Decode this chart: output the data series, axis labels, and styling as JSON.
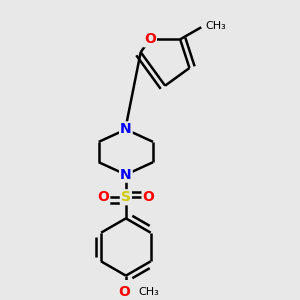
{
  "bg_color": "#e8e8e8",
  "bond_color": "#000000",
  "bond_width": 1.8,
  "atom_colors": {
    "N": "#0000ff",
    "O": "#ff0000",
    "S": "#cccc00",
    "C": "#000000"
  },
  "font_size": 10,
  "small_font_size": 8
}
